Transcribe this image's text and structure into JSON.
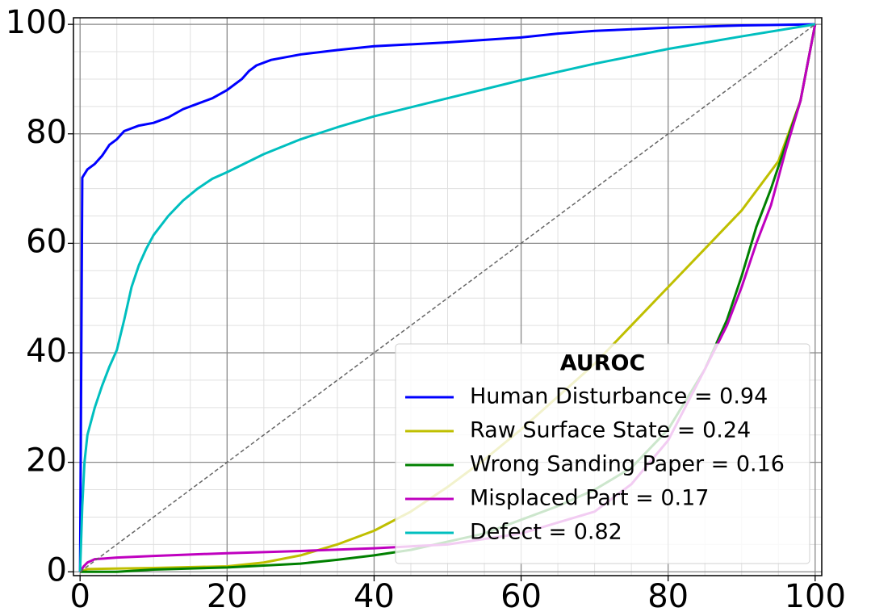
{
  "chart_data": {
    "type": "line",
    "xlim": [
      -0.9,
      100.9
    ],
    "ylim": [
      -0.7,
      101.2
    ],
    "xticks": [
      0,
      20,
      40,
      60,
      80,
      100
    ],
    "yticks": [
      0,
      20,
      40,
      60,
      80,
      100
    ],
    "grid": true,
    "minor_grid": true,
    "legend": {
      "title": "AUROC",
      "loc": "lower right"
    },
    "series": [
      {
        "name": "Human Disturbance = 0.94",
        "color": "#0000ff",
        "x": [
          0,
          0.3,
          1,
          2,
          3,
          4,
          5,
          6,
          8,
          10,
          12,
          14,
          16,
          18,
          20,
          22,
          23,
          24,
          26,
          30,
          35,
          40,
          50,
          60,
          65,
          70,
          80,
          90,
          100
        ],
        "values": [
          0,
          72,
          73.5,
          74.5,
          76,
          78,
          79,
          80.5,
          81.5,
          82,
          83,
          84.5,
          85.5,
          86.5,
          88,
          90,
          91.5,
          92.5,
          93.5,
          94.5,
          95.3,
          96,
          96.7,
          97.6,
          98.3,
          98.8,
          99.4,
          99.8,
          100
        ]
      },
      {
        "name": "Raw Surface State = 0.24",
        "color": "#bfbf00",
        "x": [
          0,
          1,
          10,
          20,
          25,
          30,
          35,
          40,
          45,
          50,
          55,
          60,
          65,
          70,
          75,
          80,
          85,
          90,
          95,
          98,
          100
        ],
        "values": [
          0,
          0.5,
          0.7,
          1,
          1.7,
          3,
          5,
          7.5,
          11,
          15.5,
          20.5,
          26,
          32,
          38,
          45,
          52,
          59,
          66,
          75,
          86,
          100
        ]
      },
      {
        "name": "Wrong Sanding Paper = 0.16",
        "color": "#008000",
        "x": [
          0,
          5,
          10,
          20,
          30,
          35,
          40,
          45,
          50,
          55,
          60,
          65,
          70,
          75,
          80,
          85,
          88,
          90,
          92,
          94,
          96,
          98,
          100
        ],
        "values": [
          0,
          0,
          0.4,
          0.8,
          1.5,
          2.2,
          3,
          4,
          5.5,
          7,
          9.5,
          12,
          15,
          19,
          26,
          37,
          46,
          54,
          63,
          70,
          78,
          86,
          100
        ]
      },
      {
        "name": "Misplaced Part = 0.17",
        "color": "#bf00bf",
        "x": [
          0,
          0.5,
          1,
          2,
          5,
          10,
          20,
          30,
          40,
          50,
          60,
          70,
          75,
          80,
          85,
          88,
          90,
          92,
          94,
          96,
          98,
          100
        ],
        "values": [
          0,
          1,
          1.7,
          2.3,
          2.6,
          2.9,
          3.4,
          3.8,
          4.3,
          5,
          7,
          11,
          16,
          24,
          37,
          45,
          52,
          60,
          67,
          77,
          86,
          100
        ]
      },
      {
        "name": "Defect = 0.82",
        "color": "#00bfbf",
        "x": [
          0,
          0.3,
          0.6,
          1,
          2,
          3,
          4,
          5,
          6,
          7,
          8,
          9,
          10,
          12,
          14,
          16,
          18,
          20,
          25,
          30,
          35,
          40,
          50,
          60,
          70,
          80,
          90,
          100
        ],
        "values": [
          0,
          12,
          20,
          25,
          30,
          34,
          37.5,
          40.5,
          46,
          52,
          56,
          59,
          61.5,
          65,
          67.8,
          70,
          71.8,
          73,
          76.3,
          79,
          81.2,
          83.2,
          86.5,
          89.8,
          92.8,
          95.5,
          97.8,
          100
        ]
      },
      {
        "color": "#666666",
        "dashed": true,
        "x": [
          0,
          100
        ],
        "values": [
          0,
          100
        ]
      }
    ]
  }
}
